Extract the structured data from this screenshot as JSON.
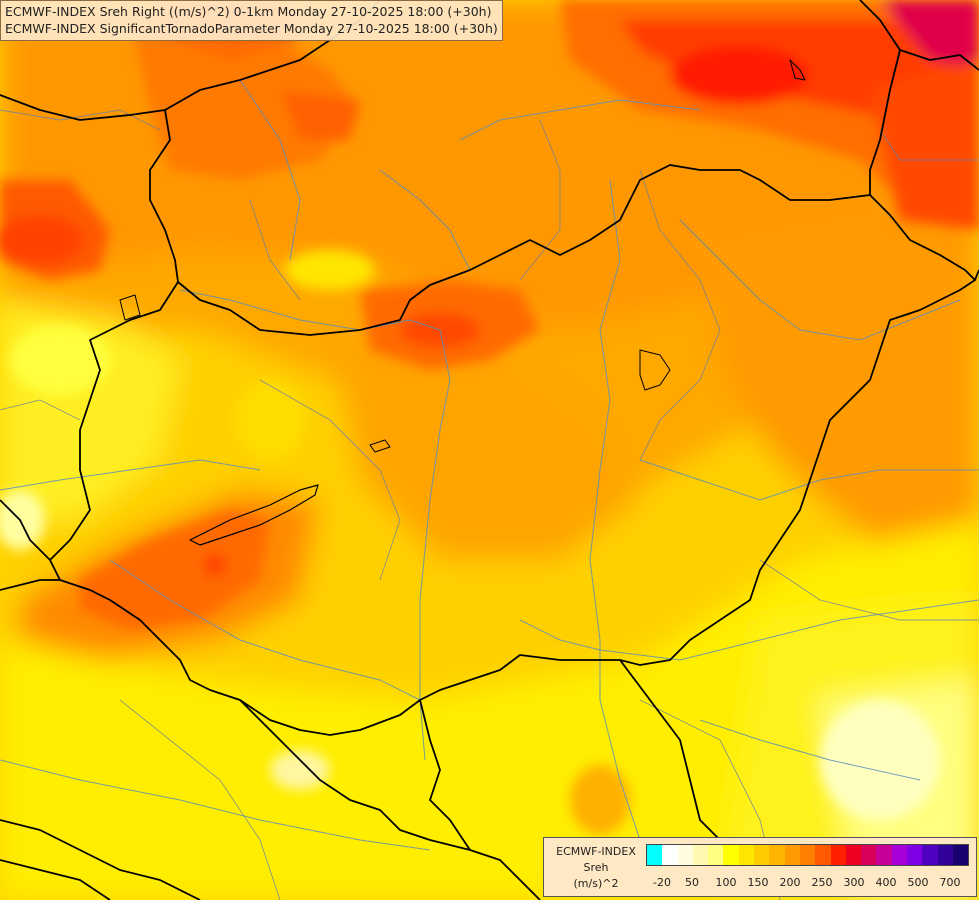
{
  "titles": {
    "line1": "ECMWF-INDEX Sreh Right ((m/s)^2) 0-1km Monday 27-10-2025 18:00 (+30h)",
    "line2": "ECMWF-INDEX SignificantTornadoParameter Monday 27-10-2025 18:00 (+30h)"
  },
  "legend": {
    "line1": "ECMWF-INDEX",
    "line2": "Sreh",
    "line3": "(m/s)^2",
    "colors": [
      "#00ffff",
      "#ffffff",
      "#fffce0",
      "#fff8b0",
      "#ffff80",
      "#ffff00",
      "#ffe600",
      "#ffcc00",
      "#ffb400",
      "#ff9a00",
      "#ff8000",
      "#ff5a00",
      "#ff2000",
      "#ee0020",
      "#d8005a",
      "#c8009a",
      "#a800d8",
      "#8000e6",
      "#5000c0",
      "#300098",
      "#18006e"
    ],
    "ticks": [
      "-20",
      "50",
      "100",
      "150",
      "200",
      "250",
      "300",
      "400",
      "500",
      "700"
    ]
  },
  "field_colors": {
    "base": "#ffd400",
    "warm": "#ffa000",
    "hot": "#ff7a00",
    "very_hot": "#ff3000",
    "extreme": "#e0004a",
    "cool": "#ffff30",
    "pale": "#ffffa0"
  }
}
